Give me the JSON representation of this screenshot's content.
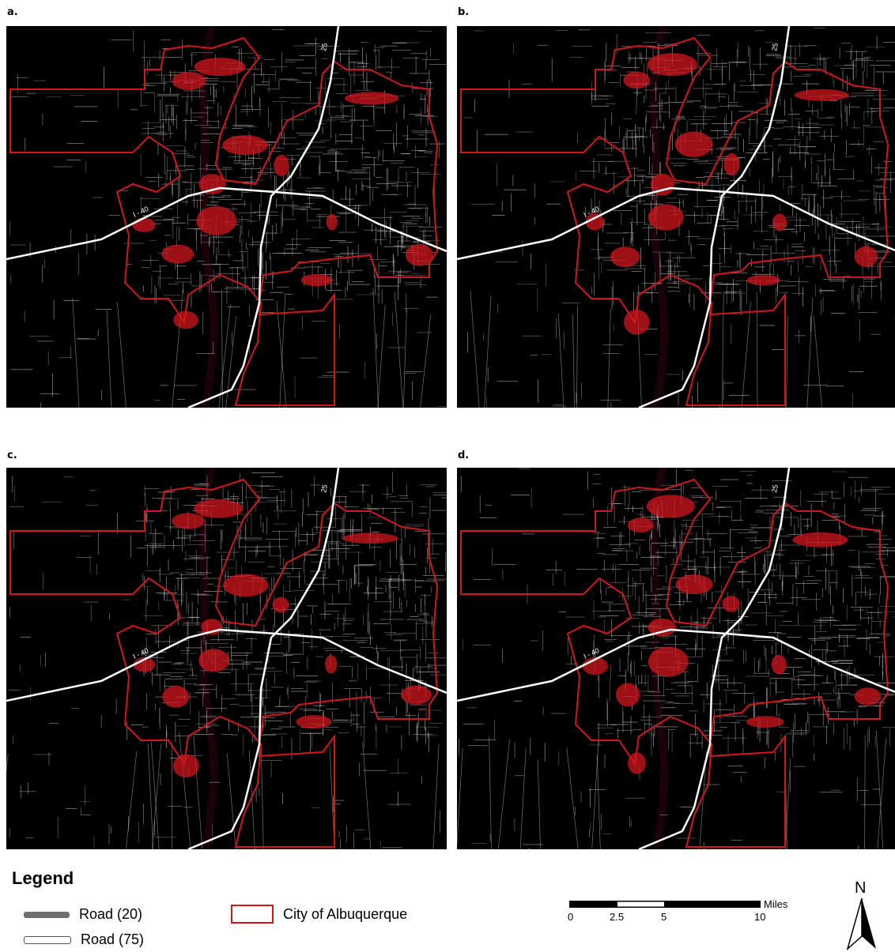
{
  "panels": [
    {
      "label": "a."
    },
    {
      "label": "b."
    },
    {
      "label": "c."
    },
    {
      "label": "d."
    }
  ],
  "map": {
    "highway_labels": {
      "i25": "25",
      "i40": "I - 40"
    },
    "colors": {
      "background": "#000000",
      "roads": "#cfcfcf",
      "highway": "#ffffff",
      "city": "#d2161c"
    }
  },
  "legend": {
    "title": "Legend",
    "items": [
      {
        "label": "Road (20)",
        "symbol": "gray-thick-line"
      },
      {
        "label": "Road (75)",
        "symbol": "white-outlined-line"
      },
      {
        "label": "City of Albuquerque",
        "symbol": "red-outline-box"
      }
    ]
  },
  "scale": {
    "unit": "Miles",
    "ticks": [
      "0",
      "2.5",
      "5",
      "10"
    ]
  },
  "north_arrow": {
    "label": "N"
  }
}
